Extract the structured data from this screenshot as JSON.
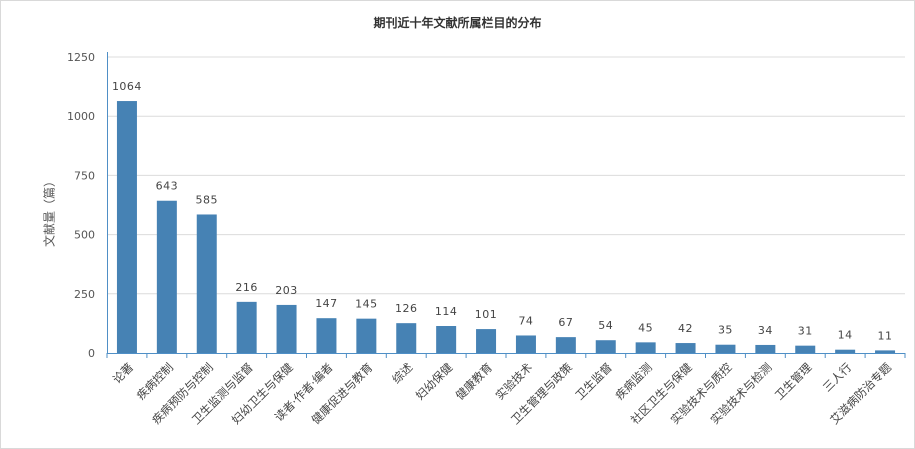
{
  "chart_data": {
    "type": "bar",
    "title": "期刊近十年文献所属栏目的分布",
    "xlabel": "",
    "ylabel": "文献量（篇）",
    "ylim": [
      0,
      1250
    ],
    "yticks": [
      0,
      250,
      500,
      750,
      1000,
      1250
    ],
    "grid": true,
    "legend": "none",
    "bar_color": "#4682b4",
    "categories": [
      "论著",
      "疾病控制",
      "疾病预防与控制",
      "卫生监测与监督",
      "妇幼卫生与保健",
      "读者·作者·编者",
      "健康促进与教育",
      "综述",
      "妇幼保健",
      "健康教育",
      "实验技术",
      "卫生管理与政策",
      "卫生监督",
      "疾病监测",
      "社区卫生与保健",
      "实验技术与质控",
      "实验技术与检测",
      "卫生管理",
      "三人行",
      "艾滋病防治专题"
    ],
    "values": [
      1064,
      643,
      585,
      216,
      203,
      147,
      145,
      126,
      114,
      101,
      74,
      67,
      54,
      45,
      42,
      35,
      34,
      31,
      14,
      11
    ]
  }
}
